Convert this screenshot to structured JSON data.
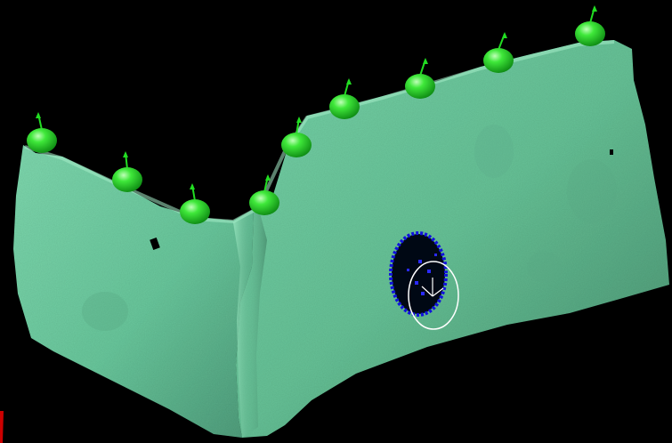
{
  "viewport": {
    "background_color": "#000000",
    "scene": "3d-scan-mesh",
    "mesh_color": "#6fcfa5",
    "mesh_shadow_color": "#3f8a69",
    "mesh_highlight_color": "#a6ecc8",
    "marker_color": "#22dd22",
    "marker_count": 10,
    "selected_feature": "hole",
    "hole_outline_color": "#1111dd",
    "fit_circle_color": "#ffffff",
    "corner_mark_color": "#cc0000"
  }
}
